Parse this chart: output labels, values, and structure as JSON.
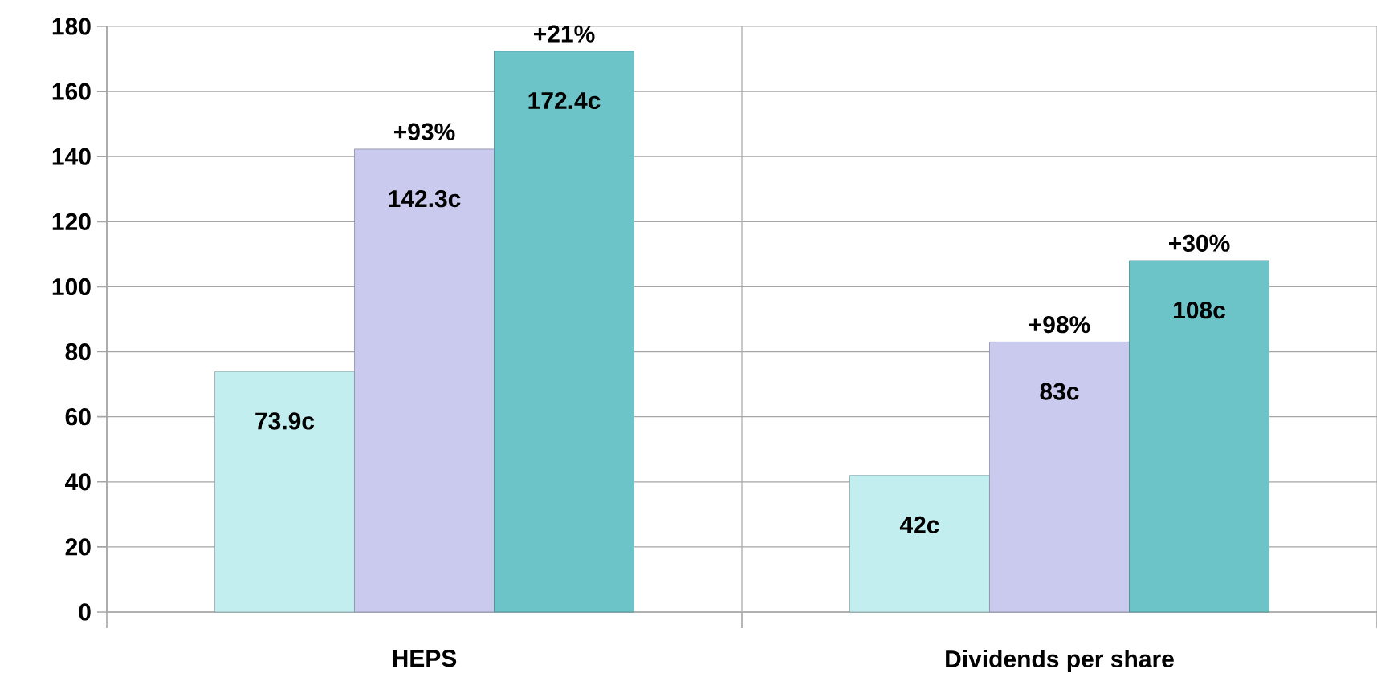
{
  "chart_data": {
    "type": "bar",
    "categories": [
      "HEPS",
      "Dividends per share"
    ],
    "series": [
      {
        "color": "#c2eef0",
        "values": [
          73.9,
          42
        ],
        "value_labels": [
          "73.9c",
          "42c"
        ]
      },
      {
        "color": "#cacaee",
        "values": [
          142.3,
          83
        ],
        "value_labels": [
          "142.3c",
          "83c"
        ]
      },
      {
        "color": "#6cc4c8",
        "values": [
          172.4,
          108
        ],
        "value_labels": [
          "172.4c",
          "108c"
        ]
      }
    ],
    "ylim": [
      0,
      180
    ],
    "yticks": [
      0,
      20,
      40,
      60,
      80,
      100,
      120,
      140,
      160,
      180
    ],
    "grid": true,
    "annotations": [
      "+93%",
      "+21%",
      "+98%",
      "+30%"
    ]
  }
}
